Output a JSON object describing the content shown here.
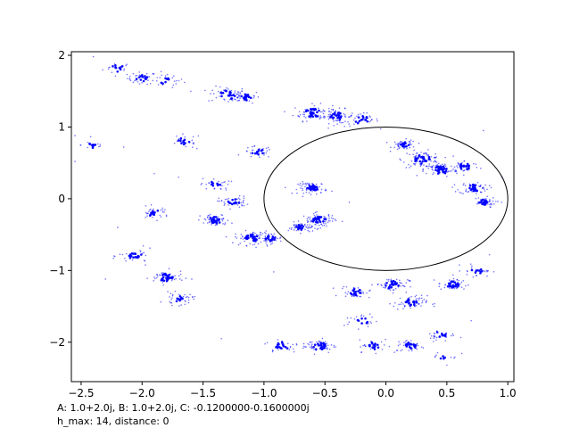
{
  "chart_data": {
    "type": "scatter",
    "title": "",
    "xlabel": "",
    "ylabel": "",
    "xlim": [
      -2.58,
      1.05
    ],
    "ylim": [
      -2.55,
      2.05
    ],
    "x_ticks": [
      -2.5,
      -2.0,
      -1.5,
      -1.0,
      -0.5,
      0.0,
      0.5,
      1.0
    ],
    "x_tick_labels": [
      "−2.5",
      "−2.0",
      "−1.5",
      "−1.0",
      "−0.5",
      "0.0",
      "0.5",
      "1.0"
    ],
    "y_ticks": [
      2,
      1,
      0,
      -1,
      -2
    ],
    "y_tick_labels": [
      "2",
      "1",
      "0",
      "−1",
      "−2"
    ],
    "grid": false,
    "point_color": "#0000ff",
    "curve_color": "#000000",
    "unit_circle": {
      "center": [
        0,
        0
      ],
      "radius": 1
    },
    "clusters": [
      {
        "x": -2.2,
        "y": 1.82,
        "n": 20,
        "spread": 0.06
      },
      {
        "x": -2.0,
        "y": 1.68,
        "n": 40,
        "spread": 0.06
      },
      {
        "x": -1.8,
        "y": 1.65,
        "n": 25,
        "spread": 0.07
      },
      {
        "x": -1.3,
        "y": 1.45,
        "n": 55,
        "spread": 0.08
      },
      {
        "x": -1.15,
        "y": 1.42,
        "n": 40,
        "spread": 0.06
      },
      {
        "x": -0.6,
        "y": 1.2,
        "n": 70,
        "spread": 0.08
      },
      {
        "x": -0.4,
        "y": 1.15,
        "n": 60,
        "spread": 0.07
      },
      {
        "x": -0.2,
        "y": 1.1,
        "n": 40,
        "spread": 0.07
      },
      {
        "x": -2.4,
        "y": 0.75,
        "n": 18,
        "spread": 0.05
      },
      {
        "x": -1.65,
        "y": 0.8,
        "n": 25,
        "spread": 0.07
      },
      {
        "x": -1.05,
        "y": 0.65,
        "n": 35,
        "spread": 0.06
      },
      {
        "x": 0.15,
        "y": 0.75,
        "n": 50,
        "spread": 0.05
      },
      {
        "x": 0.3,
        "y": 0.55,
        "n": 90,
        "spread": 0.08
      },
      {
        "x": 0.45,
        "y": 0.4,
        "n": 70,
        "spread": 0.07
      },
      {
        "x": 0.65,
        "y": 0.45,
        "n": 40,
        "spread": 0.06
      },
      {
        "x": 0.72,
        "y": 0.15,
        "n": 60,
        "spread": 0.06
      },
      {
        "x": 0.8,
        "y": -0.05,
        "n": 45,
        "spread": 0.05
      },
      {
        "x": -1.4,
        "y": 0.2,
        "n": 30,
        "spread": 0.06
      },
      {
        "x": -1.25,
        "y": -0.05,
        "n": 45,
        "spread": 0.06
      },
      {
        "x": -1.4,
        "y": -0.3,
        "n": 60,
        "spread": 0.06
      },
      {
        "x": -1.1,
        "y": -0.55,
        "n": 70,
        "spread": 0.07
      },
      {
        "x": -0.95,
        "y": -0.55,
        "n": 40,
        "spread": 0.05
      },
      {
        "x": -0.6,
        "y": 0.15,
        "n": 70,
        "spread": 0.06
      },
      {
        "x": -0.55,
        "y": -0.3,
        "n": 80,
        "spread": 0.07
      },
      {
        "x": -0.7,
        "y": -0.4,
        "n": 50,
        "spread": 0.05
      },
      {
        "x": -1.9,
        "y": -0.2,
        "n": 35,
        "spread": 0.06
      },
      {
        "x": -2.05,
        "y": -0.8,
        "n": 35,
        "spread": 0.07
      },
      {
        "x": -1.8,
        "y": -1.1,
        "n": 60,
        "spread": 0.07
      },
      {
        "x": -1.7,
        "y": -1.4,
        "n": 40,
        "spread": 0.06
      },
      {
        "x": -0.25,
        "y": -1.3,
        "n": 40,
        "spread": 0.06
      },
      {
        "x": 0.05,
        "y": -1.2,
        "n": 60,
        "spread": 0.07
      },
      {
        "x": 0.2,
        "y": -1.45,
        "n": 60,
        "spread": 0.07
      },
      {
        "x": 0.55,
        "y": -1.2,
        "n": 50,
        "spread": 0.06
      },
      {
        "x": 0.75,
        "y": -1.0,
        "n": 30,
        "spread": 0.06
      },
      {
        "x": -0.2,
        "y": -1.7,
        "n": 25,
        "spread": 0.07
      },
      {
        "x": -0.55,
        "y": -2.05,
        "n": 60,
        "spread": 0.07
      },
      {
        "x": -0.85,
        "y": -2.05,
        "n": 30,
        "spread": 0.07
      },
      {
        "x": -0.1,
        "y": -2.05,
        "n": 35,
        "spread": 0.06
      },
      {
        "x": 0.2,
        "y": -2.05,
        "n": 40,
        "spread": 0.06
      },
      {
        "x": 0.45,
        "y": -1.9,
        "n": 30,
        "spread": 0.06
      },
      {
        "x": 0.48,
        "y": -2.2,
        "n": 12,
        "spread": 0.06
      }
    ],
    "scattered_points": [
      [
        -2.4,
        1.98
      ],
      [
        -2.55,
        0.88
      ],
      [
        -2.55,
        0.52
      ],
      [
        -2.15,
        0.72
      ],
      [
        -1.75,
        1.55
      ],
      [
        -1.6,
        1.5
      ],
      [
        -1.55,
        0.7
      ],
      [
        -1.9,
        0.35
      ],
      [
        -1.7,
        0.3
      ],
      [
        -2.2,
        -0.4
      ],
      [
        -2.3,
        -1.12
      ],
      [
        -1.35,
        -1.95
      ],
      [
        -0.92,
        -1.02
      ],
      [
        0.8,
        0.95
      ],
      [
        0.95,
        -0.05
      ],
      [
        0.5,
        -2.32
      ],
      [
        0.7,
        -1.7
      ],
      [
        0.85,
        -0.78
      ],
      [
        -0.3,
        -0.05
      ],
      [
        0.95,
        0.3
      ]
    ]
  },
  "annotations": {
    "line1": "A: 1.0+2.0j, B: 1.0+2.0j, C: -0.1200000-0.1600000j",
    "line2": "h_max: 14, distance: 0"
  }
}
